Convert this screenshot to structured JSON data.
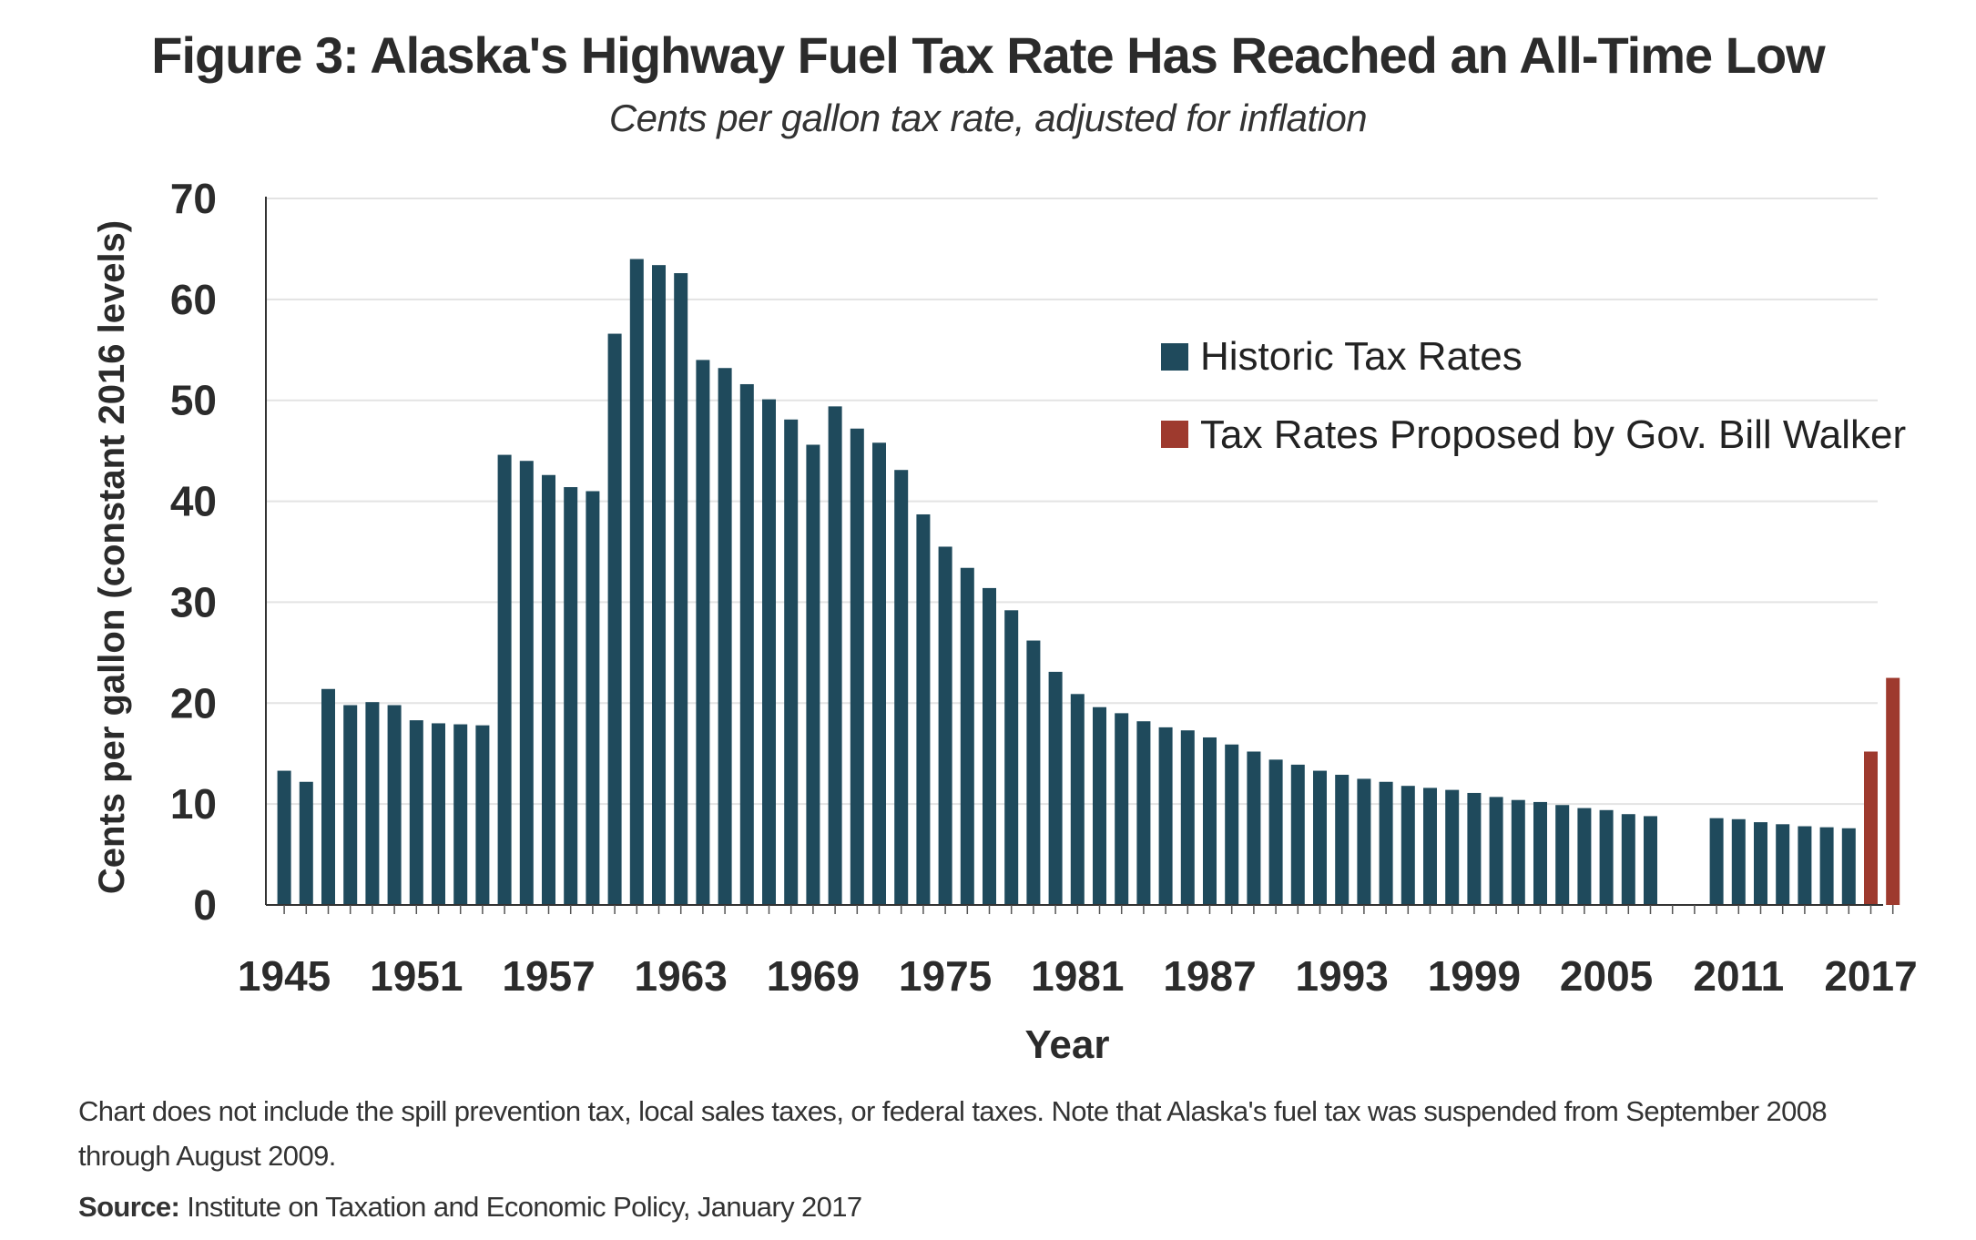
{
  "chart_data": {
    "type": "bar",
    "title": "Figure 3: Alaska's Highway Fuel Tax Rate Has Reached an All-Time Low",
    "subtitle": "Cents per gallon tax rate, adjusted for inflation",
    "xlabel": "Year",
    "ylabel": "Cents per gallon (constant 2016 levels)",
    "ylim": [
      0,
      70
    ],
    "yticks": [
      "0",
      "10",
      "20",
      "30",
      "40",
      "50",
      "60",
      "70"
    ],
    "xtick_labels": [
      "1945",
      "1951",
      "1957",
      "1963",
      "1969",
      "1975",
      "1981",
      "1987",
      "1993",
      "1999",
      "2005",
      "2011",
      "2017"
    ],
    "grid": true,
    "legend_position": "top-right",
    "series": [
      {
        "name": "Historic Tax Rates",
        "color": "#1f4a5c",
        "x": [
          1945,
          1946,
          1947,
          1948,
          1949,
          1950,
          1951,
          1952,
          1953,
          1954,
          1955,
          1956,
          1957,
          1958,
          1959,
          1960,
          1961,
          1962,
          1963,
          1964,
          1965,
          1966,
          1967,
          1968,
          1969,
          1970,
          1971,
          1972,
          1973,
          1974,
          1975,
          1976,
          1977,
          1978,
          1979,
          1980,
          1981,
          1982,
          1983,
          1984,
          1985,
          1986,
          1987,
          1988,
          1989,
          1990,
          1991,
          1992,
          1993,
          1994,
          1995,
          1996,
          1997,
          1998,
          1999,
          2000,
          2001,
          2002,
          2003,
          2004,
          2005,
          2006,
          2007,
          2008,
          2009,
          2010,
          2011,
          2012,
          2013,
          2014,
          2015,
          2016
        ],
        "values": [
          13.3,
          12.2,
          21.4,
          19.8,
          20.1,
          19.8,
          18.3,
          18.0,
          17.9,
          17.8,
          44.6,
          44.0,
          42.6,
          41.4,
          41.0,
          56.6,
          64.0,
          63.4,
          62.6,
          54.0,
          53.2,
          51.6,
          50.1,
          48.1,
          45.6,
          49.4,
          47.2,
          45.8,
          43.1,
          38.7,
          35.5,
          33.4,
          31.4,
          29.2,
          26.2,
          23.1,
          20.9,
          19.6,
          19.0,
          18.2,
          17.6,
          17.3,
          16.6,
          15.9,
          15.2,
          14.4,
          13.9,
          13.3,
          12.9,
          12.5,
          12.2,
          11.8,
          11.6,
          11.4,
          11.1,
          10.7,
          10.4,
          10.2,
          9.9,
          9.6,
          9.4,
          9.0,
          8.8,
          0,
          0,
          8.6,
          8.5,
          8.2,
          8.0,
          7.8,
          7.7,
          7.6
        ]
      },
      {
        "name": "Tax Rates Proposed by Gov. Bill Walker",
        "color": "#9e3a2e",
        "x": [
          2017,
          2018
        ],
        "values": [
          15.2,
          22.5
        ]
      }
    ]
  },
  "footnote": {
    "line1": "Chart does not include the spill prevention tax, local sales taxes, or federal taxes. Note that Alaska's fuel tax was suspended from September 2008",
    "line2": "through August 2009.",
    "source_label": "Source:",
    "source_text": " Institute on Taxation and Economic Policy, January 2017"
  }
}
